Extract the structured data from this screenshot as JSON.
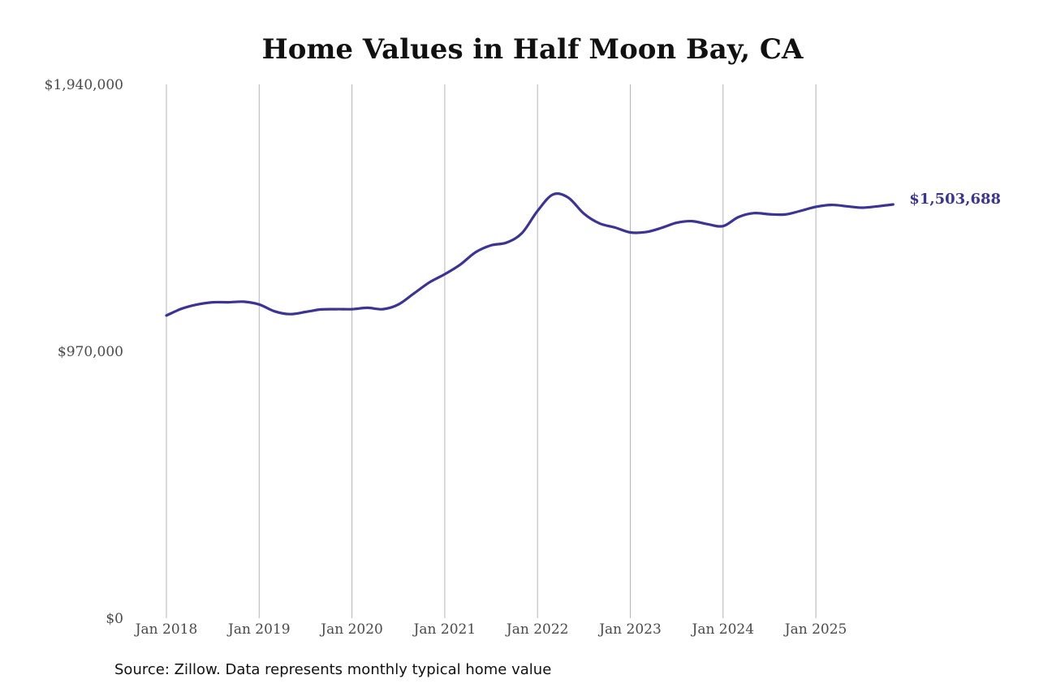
{
  "chart_data": {
    "type": "line",
    "title": "Home Values in Half Moon Bay, CA",
    "xlabel": "",
    "ylabel": "",
    "ylim": [
      0,
      1940000
    ],
    "y_ticks": [
      {
        "value": 0,
        "label": "$0"
      },
      {
        "value": 970000,
        "label": "$970,000"
      },
      {
        "value": 1940000,
        "label": "$1,940,000"
      }
    ],
    "x_ticks": [
      "Jan 2018",
      "Jan 2019",
      "Jan 2020",
      "Jan 2021",
      "Jan 2022",
      "Jan 2023",
      "Jan 2024",
      "Jan 2025"
    ],
    "x_range": [
      "2018-01",
      "2025-11"
    ],
    "grid": "vertical at x ticks",
    "line_color": "#3b3494",
    "end_label": "$1,503,688",
    "series": [
      {
        "x": [
          "2018-01",
          "2018-03",
          "2018-05",
          "2018-07",
          "2018-09",
          "2018-11",
          "2019-01",
          "2019-03",
          "2019-05",
          "2019-07",
          "2019-09",
          "2019-11",
          "2020-01",
          "2020-03",
          "2020-05",
          "2020-07",
          "2020-09",
          "2020-11",
          "2021-01",
          "2021-03",
          "2021-05",
          "2021-07",
          "2021-09",
          "2021-11",
          "2022-01",
          "2022-03",
          "2022-05",
          "2022-07",
          "2022-09",
          "2022-11",
          "2023-01",
          "2023-03",
          "2023-05",
          "2023-07",
          "2023-09",
          "2023-11",
          "2024-01",
          "2024-03",
          "2024-05",
          "2024-07",
          "2024-09",
          "2024-11",
          "2025-01",
          "2025-03",
          "2025-05",
          "2025-07",
          "2025-09",
          "2025-11"
        ],
        "values": [
          1100000,
          1125000,
          1140000,
          1148000,
          1148000,
          1150000,
          1140000,
          1115000,
          1105000,
          1113000,
          1122000,
          1123000,
          1123000,
          1128000,
          1123000,
          1140000,
          1180000,
          1220000,
          1250000,
          1285000,
          1330000,
          1355000,
          1365000,
          1400000,
          1480000,
          1540000,
          1528000,
          1470000,
          1435000,
          1420000,
          1402000,
          1403000,
          1418000,
          1437000,
          1443000,
          1432000,
          1425000,
          1458000,
          1472000,
          1468000,
          1467000,
          1480000,
          1495000,
          1502000,
          1497000,
          1492000,
          1497000,
          1503688
        ]
      }
    ],
    "source": "Source: Zillow. Data represents monthly typical home value"
  }
}
